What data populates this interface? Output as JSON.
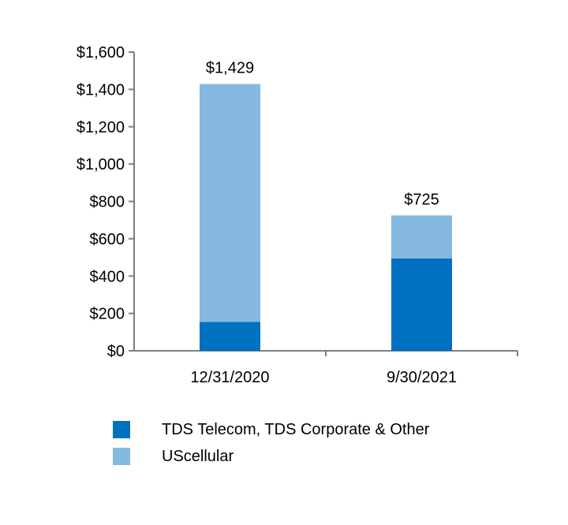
{
  "chart_data": {
    "type": "bar",
    "stacked": true,
    "categories": [
      "12/31/2020",
      "9/30/2021"
    ],
    "series": [
      {
        "name": "TDS Telecom, TDS Corporate & Other",
        "color": "#0070c0",
        "values": [
          155,
          495
        ]
      },
      {
        "name": "UScellular",
        "color": "#85b9e0",
        "values": [
          1274,
          230
        ]
      }
    ],
    "totals": [
      1429,
      725
    ],
    "total_labels": [
      "$1,429",
      "$725"
    ],
    "y_ticks": [
      "$0",
      "$200",
      "$400",
      "$600",
      "$800",
      "$1,000",
      "$1,200",
      "$1,400",
      "$1,600"
    ],
    "ylim": [
      0,
      1600
    ],
    "legend_position": "bottom-left",
    "grid": false
  }
}
